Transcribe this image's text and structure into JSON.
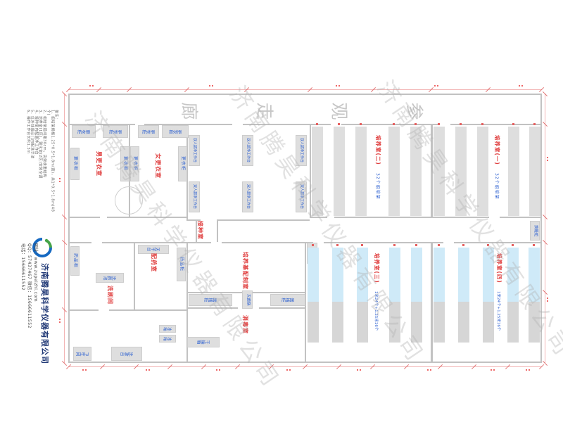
{
  "drawing": {
    "corridor_chars": [
      "廊",
      "走",
      "观",
      "参"
    ],
    "corridor_name": "参观走廊"
  },
  "notes": {
    "title": "备注：",
    "lines": [
      "1、组培架规格1.25*0.5*1.8m(高)，共1*0.5*1.8m(48个)",
      "2、组培架层间距30cm，货架承重结构",
      "3、培养室(1区)、驯化室(2区)安装空调",
      "4、接种室内配超净工作台",
      "5、红外线感应门内配洗手池",
      "6、操作工作台长约1.5m"
    ]
  },
  "rooms": {
    "men_changing": "男更衣室",
    "women_changing": "女更衣室",
    "inoculation": "接种室",
    "washing": "洗刷间",
    "dispensing": "配药室",
    "media_prep": "培养基配制室",
    "disinfection": "消毒室",
    "culture1": "培养室(一)",
    "culture1_spec": "32个组培架",
    "culture2": "培养室(二)",
    "culture2_spec": "32个组培架",
    "culture3": "培养室(三)",
    "culture3_spec": "1米24个+1.25米16个",
    "culture4": "培养室(四)",
    "culture4_spec": "1米24个+1.25米16个"
  },
  "equipment": {
    "locker": "更衣柜",
    "clean_bench": "双人超净工作台",
    "med_cabinet": "药品柜",
    "balance": "天平台",
    "wash_sink": "洗刷池",
    "fridge": "冰箱",
    "instrument_cabinet": "器械柜",
    "autoclave": "灭菌锅",
    "dryer": "干燥箱",
    "washstand": "洗漱台",
    "toilet": "卫生间",
    "handwash": "洗手池",
    "shoe_cabinet": "换鞋柜"
  },
  "company": {
    "name": "济南腾昊科学仪器有限公司",
    "phone": "电话：15666611552",
    "qq": "QQ：57437467  微信：15666611552",
    "website": "网址：www.zupeizhi.com"
  },
  "watermark": {
    "text": "济南腾昊科学仪器有限公司"
  },
  "colors": {
    "room_label": "#e04040",
    "equip_label": "#2b5fd0",
    "wall": "#c2c2c2",
    "dimension": "#e07070",
    "rack_gray": "#dedede",
    "rack_blue": "#cfeaf8",
    "company_navy": "#223a77",
    "logo_blue": "#1669c2",
    "logo_green": "#45a348"
  }
}
